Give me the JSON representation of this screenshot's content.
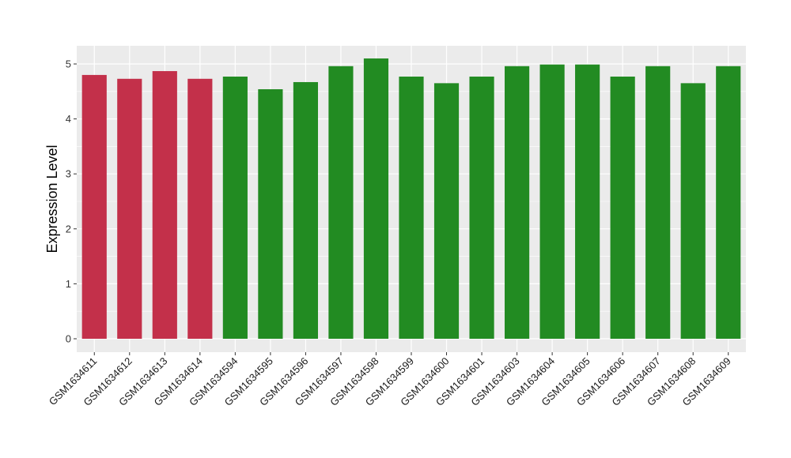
{
  "colors": {
    "panel_background": "#EBEBEB",
    "grid_major": "#FFFFFF",
    "group_a": "#C3304A",
    "group_b": "#228B22"
  },
  "chart_data": {
    "type": "bar",
    "ylabel": "Expression Level",
    "xlabel": "",
    "ylim": [
      0,
      5.25
    ],
    "yticks": [
      0,
      1,
      2,
      3,
      4,
      5
    ],
    "grid": true,
    "legend": "none",
    "categories": [
      "GSM1634611",
      "GSM1634612",
      "GSM1634613",
      "GSM1634614",
      "GSM1634594",
      "GSM1634595",
      "GSM1634596",
      "GSM1634597",
      "GSM1634598",
      "GSM1634599",
      "GSM1634600",
      "GSM1634601",
      "GSM1634603",
      "GSM1634604",
      "GSM1634605",
      "GSM1634606",
      "GSM1634607",
      "GSM1634608",
      "GSM1634609"
    ],
    "values": [
      4.8,
      4.73,
      4.87,
      4.73,
      4.77,
      4.54,
      4.67,
      4.96,
      5.1,
      4.77,
      4.65,
      4.77,
      4.96,
      4.99,
      4.99,
      4.77,
      4.96,
      4.65,
      4.96
    ],
    "bar_colors": [
      "#C3304A",
      "#C3304A",
      "#C3304A",
      "#C3304A",
      "#228B22",
      "#228B22",
      "#228B22",
      "#228B22",
      "#228B22",
      "#228B22",
      "#228B22",
      "#228B22",
      "#228B22",
      "#228B22",
      "#228B22",
      "#228B22",
      "#228B22",
      "#228B22",
      "#228B22"
    ]
  }
}
